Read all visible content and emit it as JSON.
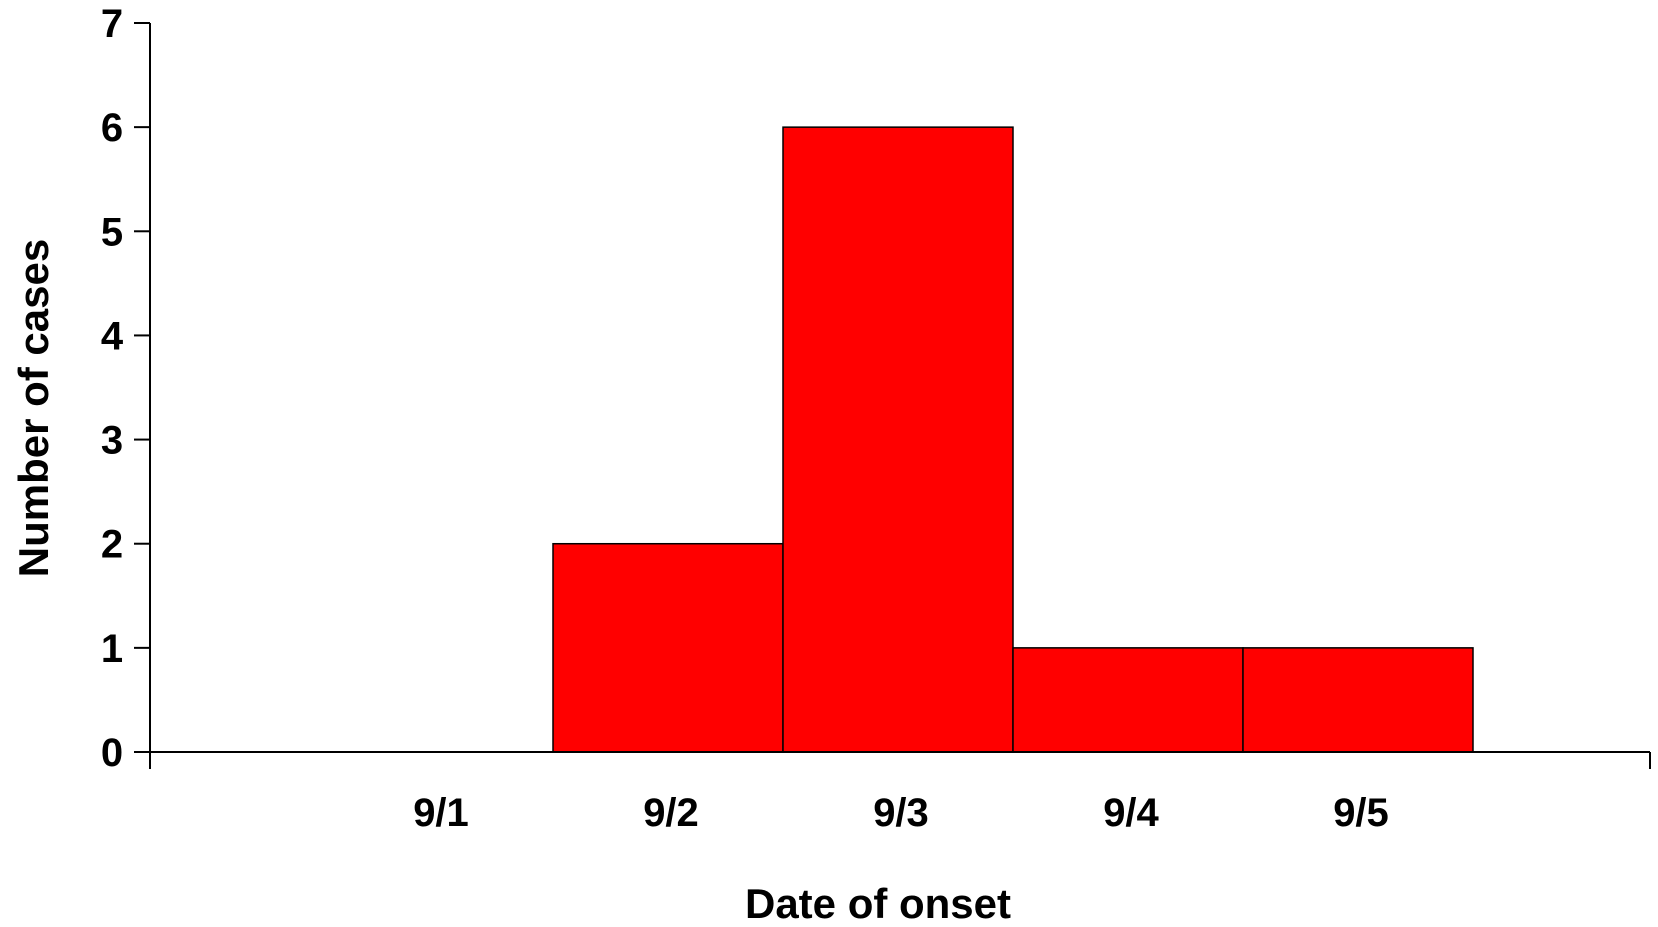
{
  "chart_data": {
    "type": "bar",
    "categories": [
      "9/1",
      "9/2",
      "9/3",
      "9/4",
      "9/5"
    ],
    "values": [
      0,
      2,
      6,
      1,
      1
    ],
    "title": "",
    "xlabel": "Date of onset",
    "ylabel": "Number of cases",
    "ylim": [
      0,
      7
    ],
    "yticks": [
      "0",
      "1",
      "2",
      "3",
      "4",
      "5",
      "6",
      "7"
    ],
    "grid": false,
    "bar_color": "#ff0000",
    "edge_color": "#000000"
  }
}
